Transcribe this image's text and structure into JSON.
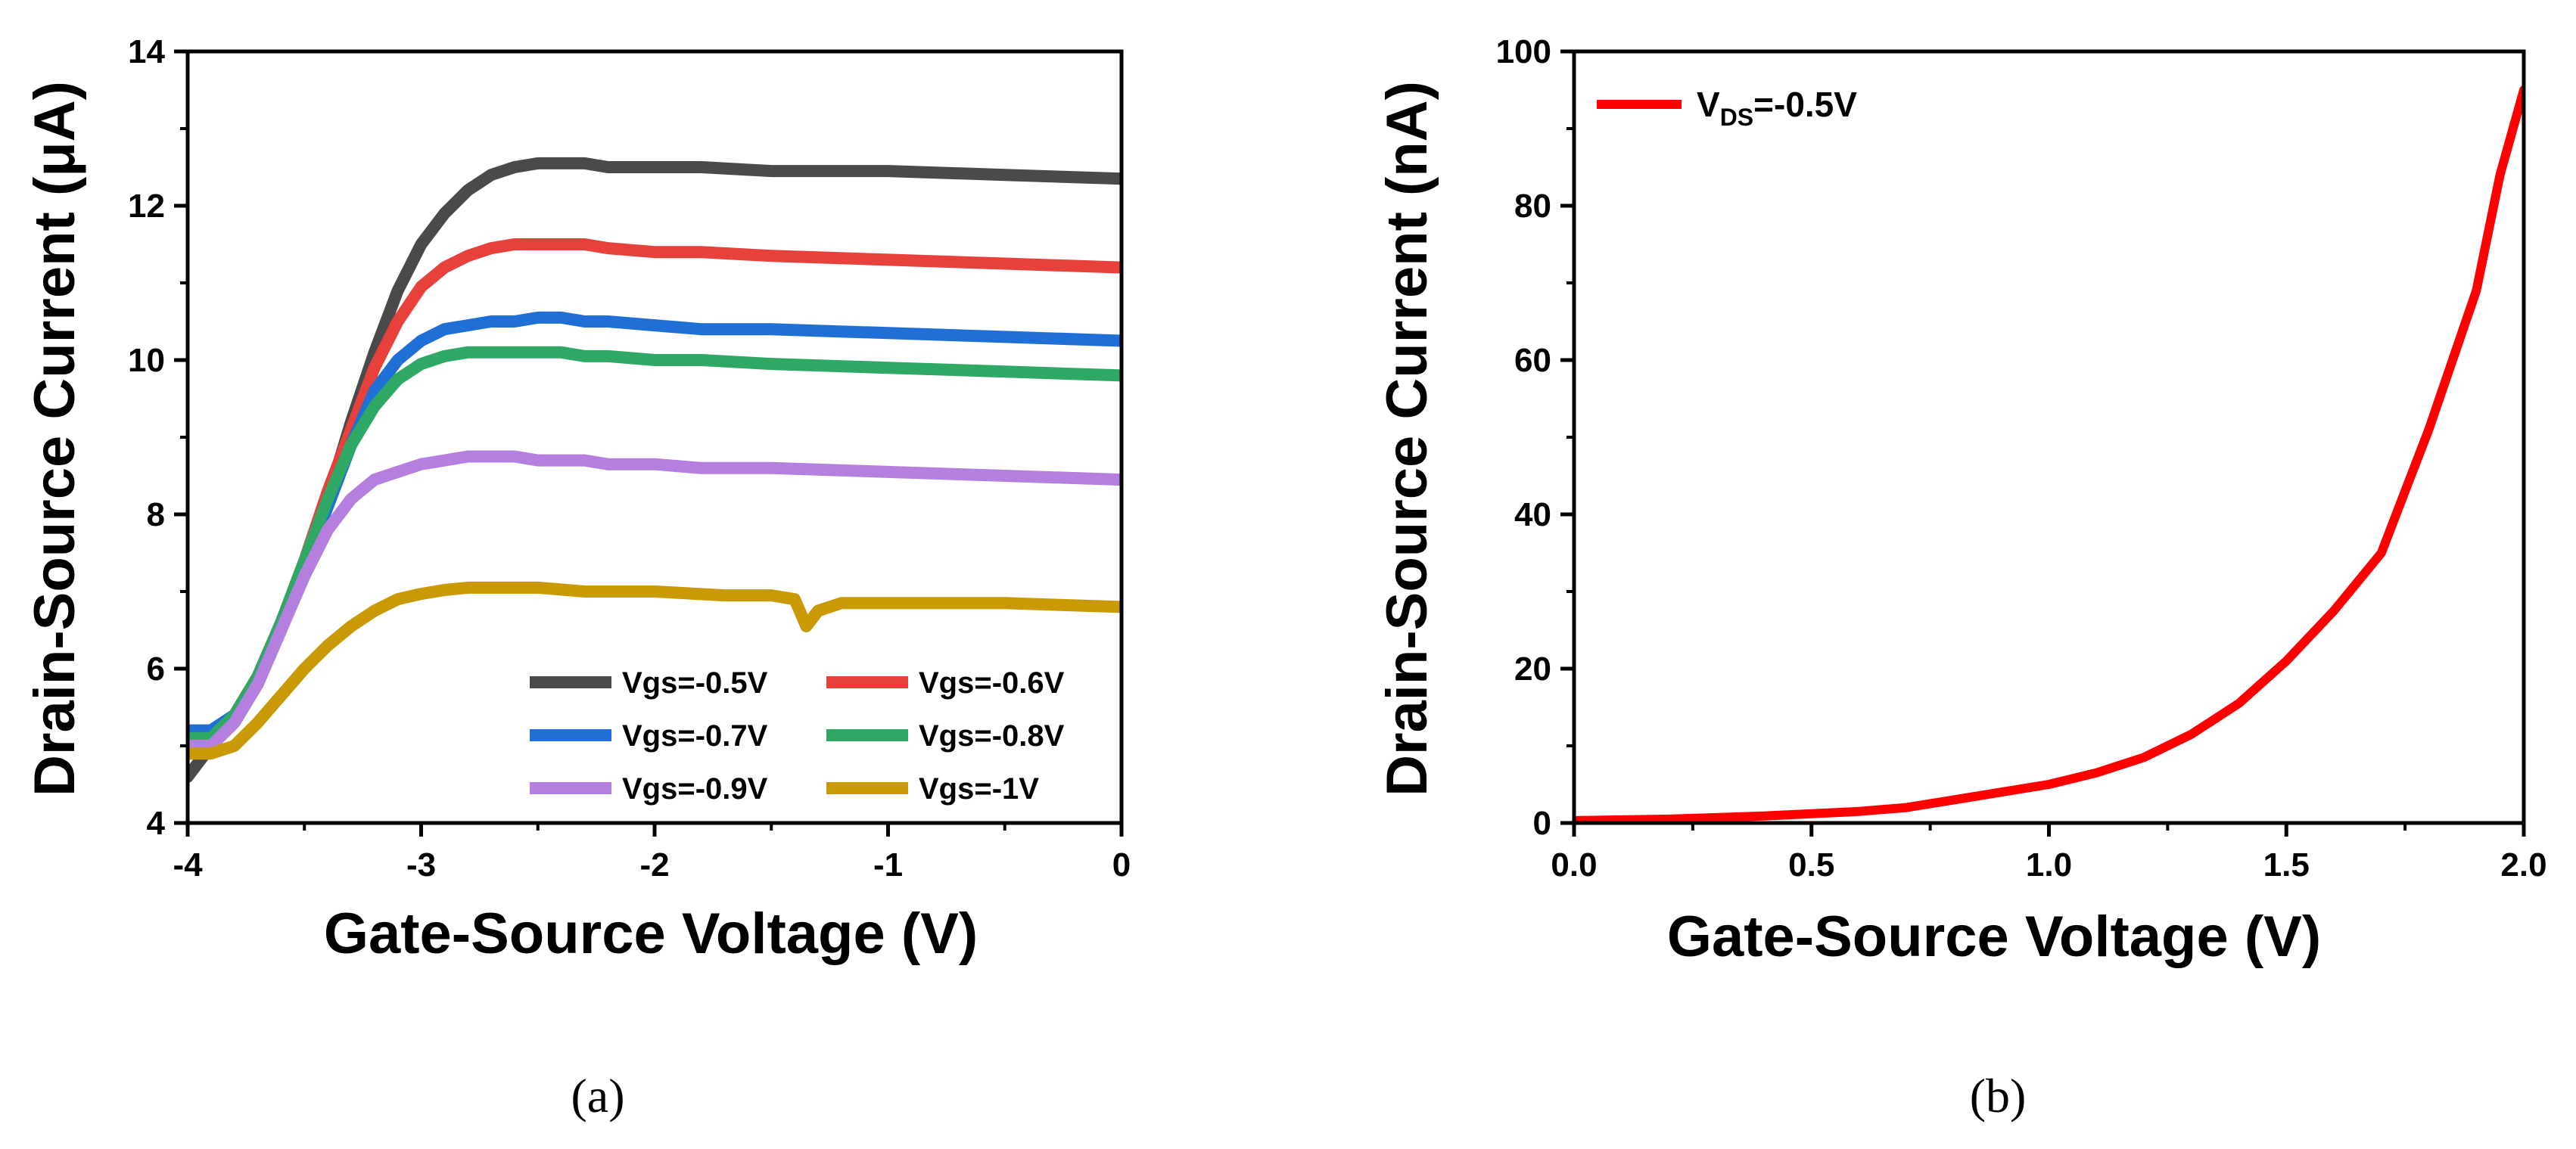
{
  "chart_data": [
    {
      "panel_label": "(a)",
      "type": "line",
      "xlabel": "Gate-Source Voltage (V)",
      "ylabel": "Drain-Source Current (μA)",
      "xlim": [
        -4,
        0
      ],
      "ylim": [
        4,
        14
      ],
      "xticks": [
        -4,
        -3,
        -2,
        -1,
        0
      ],
      "xtick_labels": [
        "-4",
        "-3",
        "-2",
        "-1",
        "0"
      ],
      "yticks": [
        4,
        6,
        8,
        10,
        12,
        14
      ],
      "ytick_labels": [
        "4",
        "6",
        "8",
        "10",
        "12",
        "14"
      ],
      "legend_position": "bottom-right",
      "grid": false,
      "series": [
        {
          "name": "Vgs=-0.5V",
          "color": "#4a4a4a",
          "x": [
            -4.0,
            -3.9,
            -3.8,
            -3.7,
            -3.6,
            -3.5,
            -3.4,
            -3.3,
            -3.2,
            -3.1,
            -3.0,
            -2.9,
            -2.8,
            -2.7,
            -2.6,
            -2.5,
            -2.4,
            -2.3,
            -2.2,
            -2.0,
            -1.8,
            -1.5,
            -1.0,
            -0.5,
            0.0
          ],
          "y": [
            4.6,
            5.0,
            5.3,
            5.8,
            6.5,
            7.3,
            8.2,
            9.2,
            10.1,
            10.9,
            11.5,
            11.9,
            12.2,
            12.4,
            12.5,
            12.55,
            12.55,
            12.55,
            12.5,
            12.5,
            12.5,
            12.45,
            12.45,
            12.4,
            12.35
          ]
        },
        {
          "name": "Vgs=-0.6V",
          "color": "#e8413c",
          "x": [
            -4.0,
            -3.9,
            -3.8,
            -3.7,
            -3.6,
            -3.5,
            -3.4,
            -3.3,
            -3.2,
            -3.1,
            -3.0,
            -2.9,
            -2.8,
            -2.7,
            -2.6,
            -2.5,
            -2.4,
            -2.3,
            -2.2,
            -2.0,
            -1.8,
            -1.5,
            -1.0,
            -0.5,
            0.0
          ],
          "y": [
            5.0,
            5.1,
            5.4,
            5.9,
            6.6,
            7.4,
            8.3,
            9.1,
            9.9,
            10.5,
            10.95,
            11.2,
            11.35,
            11.45,
            11.5,
            11.5,
            11.5,
            11.5,
            11.45,
            11.4,
            11.4,
            11.35,
            11.3,
            11.25,
            11.2
          ]
        },
        {
          "name": "Vgs=-0.7V",
          "color": "#1f6fd6",
          "x": [
            -4.0,
            -3.9,
            -3.8,
            -3.7,
            -3.6,
            -3.5,
            -3.4,
            -3.3,
            -3.2,
            -3.1,
            -3.0,
            -2.9,
            -2.8,
            -2.7,
            -2.6,
            -2.5,
            -2.4,
            -2.3,
            -2.2,
            -2.0,
            -1.8,
            -1.5,
            -1.0,
            -0.5,
            0.0
          ],
          "y": [
            5.2,
            5.2,
            5.4,
            5.8,
            6.5,
            7.3,
            8.1,
            8.9,
            9.6,
            10.0,
            10.25,
            10.4,
            10.45,
            10.5,
            10.5,
            10.55,
            10.55,
            10.5,
            10.5,
            10.45,
            10.4,
            10.4,
            10.35,
            10.3,
            10.25
          ]
        },
        {
          "name": "Vgs=-0.8V",
          "color": "#2fa865",
          "x": [
            -4.0,
            -3.9,
            -3.8,
            -3.7,
            -3.6,
            -3.5,
            -3.4,
            -3.3,
            -3.2,
            -3.1,
            -3.0,
            -2.9,
            -2.8,
            -2.7,
            -2.6,
            -2.5,
            -2.4,
            -2.3,
            -2.2,
            -2.0,
            -1.8,
            -1.5,
            -1.0,
            -0.5,
            0.0
          ],
          "y": [
            5.1,
            5.1,
            5.4,
            5.9,
            6.6,
            7.4,
            8.2,
            8.9,
            9.4,
            9.75,
            9.95,
            10.05,
            10.1,
            10.1,
            10.1,
            10.1,
            10.1,
            10.05,
            10.05,
            10.0,
            10.0,
            9.95,
            9.9,
            9.85,
            9.8
          ]
        },
        {
          "name": "Vgs=-0.9V",
          "color": "#b57fe0",
          "x": [
            -4.0,
            -3.9,
            -3.8,
            -3.7,
            -3.6,
            -3.5,
            -3.4,
            -3.3,
            -3.2,
            -3.1,
            -3.0,
            -2.9,
            -2.8,
            -2.7,
            -2.6,
            -2.5,
            -2.4,
            -2.3,
            -2.2,
            -2.0,
            -1.8,
            -1.5,
            -1.0,
            -0.5,
            0.0
          ],
          "y": [
            5.0,
            5.0,
            5.3,
            5.8,
            6.5,
            7.2,
            7.8,
            8.2,
            8.45,
            8.55,
            8.65,
            8.7,
            8.75,
            8.75,
            8.75,
            8.7,
            8.7,
            8.7,
            8.65,
            8.65,
            8.6,
            8.6,
            8.55,
            8.5,
            8.45
          ]
        },
        {
          "name": "Vgs=-1V",
          "color": "#c99a06",
          "x": [
            -4.0,
            -3.9,
            -3.8,
            -3.7,
            -3.6,
            -3.5,
            -3.4,
            -3.3,
            -3.2,
            -3.1,
            -3.0,
            -2.9,
            -2.8,
            -2.7,
            -2.5,
            -2.3,
            -2.0,
            -1.7,
            -1.5,
            -1.4,
            -1.35,
            -1.3,
            -1.2,
            -1.0,
            -0.5,
            0.0
          ],
          "y": [
            4.9,
            4.9,
            5.0,
            5.3,
            5.65,
            6.0,
            6.3,
            6.55,
            6.75,
            6.9,
            6.97,
            7.02,
            7.05,
            7.05,
            7.05,
            7.0,
            7.0,
            6.95,
            6.95,
            6.9,
            6.55,
            6.75,
            6.85,
            6.85,
            6.85,
            6.8
          ]
        }
      ]
    },
    {
      "panel_label": "(b)",
      "type": "line",
      "xlabel": "Gate-Source Voltage (V)",
      "ylabel": "Drain-Source Current (nA)",
      "xlim": [
        0,
        2
      ],
      "ylim": [
        0,
        100
      ],
      "xticks": [
        0,
        0.5,
        1,
        1.5,
        2
      ],
      "xtick_labels": [
        "0.0",
        "0.5",
        "1.0",
        "1.5",
        "2.0"
      ],
      "yticks": [
        0,
        20,
        40,
        60,
        80,
        100
      ],
      "ytick_labels": [
        "0",
        "20",
        "40",
        "60",
        "80",
        "100"
      ],
      "legend_position": "top-left",
      "grid": false,
      "series": [
        {
          "name": "V",
          "name_subscript": "DS",
          "name_suffix": "=-0.5V",
          "color": "#ff0000",
          "x": [
            0.0,
            0.1,
            0.2,
            0.3,
            0.4,
            0.5,
            0.6,
            0.7,
            0.8,
            0.9,
            1.0,
            1.1,
            1.2,
            1.3,
            1.4,
            1.5,
            1.6,
            1.7,
            1.75,
            1.8,
            1.85,
            1.9,
            1.95,
            2.0
          ],
          "y": [
            0.3,
            0.4,
            0.5,
            0.7,
            0.9,
            1.2,
            1.5,
            2.0,
            3.0,
            4.0,
            5.0,
            6.5,
            8.5,
            11.5,
            15.5,
            21.0,
            27.5,
            35.0,
            43.0,
            51.0,
            60.0,
            69.0,
            84.0,
            95.0
          ]
        }
      ]
    }
  ]
}
